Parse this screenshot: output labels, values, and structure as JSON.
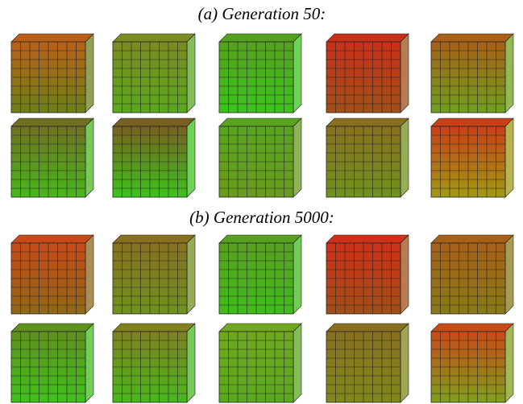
{
  "captions": {
    "a": "(a) Generation 50:",
    "b": "(b) Generation 5000:"
  }
}
